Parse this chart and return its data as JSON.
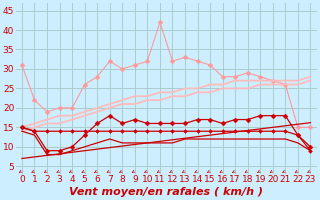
{
  "x": [
    0,
    1,
    2,
    3,
    4,
    5,
    6,
    7,
    8,
    9,
    10,
    11,
    12,
    13,
    14,
    15,
    16,
    17,
    18,
    19,
    20,
    21,
    22,
    23
  ],
  "background_color": "#cceeff",
  "grid_color": "#aacccc",
  "xlabel": "Vent moyen/en rafales ( km/h )",
  "ylim": [
    3,
    47
  ],
  "yticks": [
    5,
    10,
    15,
    20,
    25,
    30,
    35,
    40,
    45
  ],
  "xlim": [
    -0.5,
    23.5
  ],
  "line_light_peak": [
    31,
    22,
    19,
    20,
    20,
    26,
    28,
    32,
    30,
    31,
    32,
    42,
    32,
    33,
    32,
    31,
    28,
    28,
    29,
    28,
    27,
    26,
    15,
    15
  ],
  "line_light_peak_color": "#ff9999",
  "line_light_diag_upper": [
    15,
    16,
    17,
    18,
    18,
    19,
    20,
    21,
    22,
    23,
    23,
    24,
    24,
    25,
    25,
    26,
    26,
    27,
    27,
    27,
    27,
    27,
    27,
    28
  ],
  "line_light_diag_upper_color": "#ffbbbb",
  "line_light_diag_lower": [
    14,
    15,
    16,
    16,
    17,
    18,
    19,
    20,
    21,
    21,
    22,
    22,
    23,
    23,
    24,
    24,
    25,
    25,
    25,
    26,
    26,
    26,
    26,
    27
  ],
  "line_light_diag_lower_color": "#ffbbbb",
  "line_dark_wavy": [
    15,
    14,
    9,
    9,
    10,
    13,
    16,
    18,
    16,
    17,
    16,
    16,
    16,
    16,
    17,
    17,
    16,
    17,
    17,
    18,
    18,
    18,
    13,
    10
  ],
  "line_dark_wavy_color": "#cc0000",
  "line_dark_flat": [
    15,
    14,
    14,
    14,
    14,
    14,
    14,
    14,
    14,
    14,
    14,
    14,
    14,
    14,
    14,
    14,
    14,
    14,
    14,
    14,
    14,
    14,
    13,
    9
  ],
  "line_dark_flat_color": "#cc0000",
  "line_dark_low_wavy": [
    14,
    13,
    8,
    8,
    9,
    10,
    11,
    12,
    11,
    11,
    11,
    11,
    11,
    12,
    12,
    12,
    12,
    12,
    12,
    12,
    12,
    12,
    11,
    9
  ],
  "line_dark_low_wavy_color": "#cc0000",
  "line_dark_diag_low": [
    7.0,
    7.4,
    7.8,
    8.2,
    8.6,
    9.0,
    9.4,
    9.8,
    10.2,
    10.6,
    11.0,
    11.4,
    11.8,
    12.2,
    12.6,
    13.0,
    13.4,
    13.8,
    14.2,
    14.6,
    15.0,
    15.4,
    15.8,
    16.2
  ],
  "line_dark_diag_low_color": "#cc0000",
  "arrow_color": "#cc0000",
  "xlabel_fontsize": 8,
  "tick_fontsize": 6.5,
  "marker_size": 2.5
}
